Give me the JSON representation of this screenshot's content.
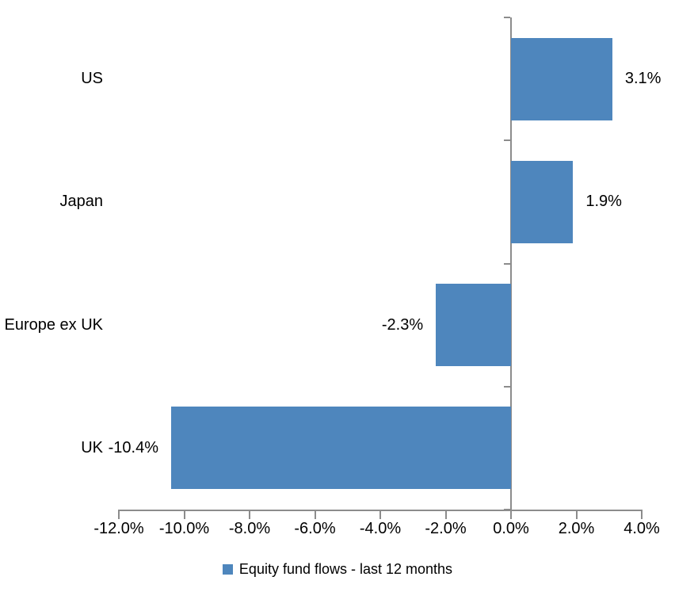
{
  "chart_data": {
    "type": "bar",
    "orientation": "horizontal",
    "title": "",
    "categories": [
      "US",
      "Japan",
      "Europe ex UK",
      "UK"
    ],
    "series": [
      {
        "name": "Equity fund flows - last 12 months",
        "values": [
          3.1,
          1.9,
          -2.3,
          -10.4
        ],
        "labels": [
          "3.1%",
          "1.9%",
          "-2.3%",
          "-10.4%"
        ]
      }
    ],
    "xlim": [
      -12,
      4
    ],
    "xtick_values": [
      -12,
      -10,
      -8,
      -6,
      -4,
      -2,
      0,
      2,
      4
    ],
    "xtick_labels": [
      "-12.0%",
      "-10.0%",
      "-8.0%",
      "-6.0%",
      "-4.0%",
      "-2.0%",
      "0.0%",
      "2.0%",
      "4.0%"
    ],
    "grid": false,
    "legend": {
      "position": "bottom",
      "entries": [
        {
          "label": "Equity fund flows - last 12 months",
          "color": "#4e86bd"
        }
      ]
    },
    "colors": {
      "bar": "#4e86bd",
      "axis": "#8c8c8c",
      "text": "#000000",
      "background": "#ffffff"
    }
  }
}
